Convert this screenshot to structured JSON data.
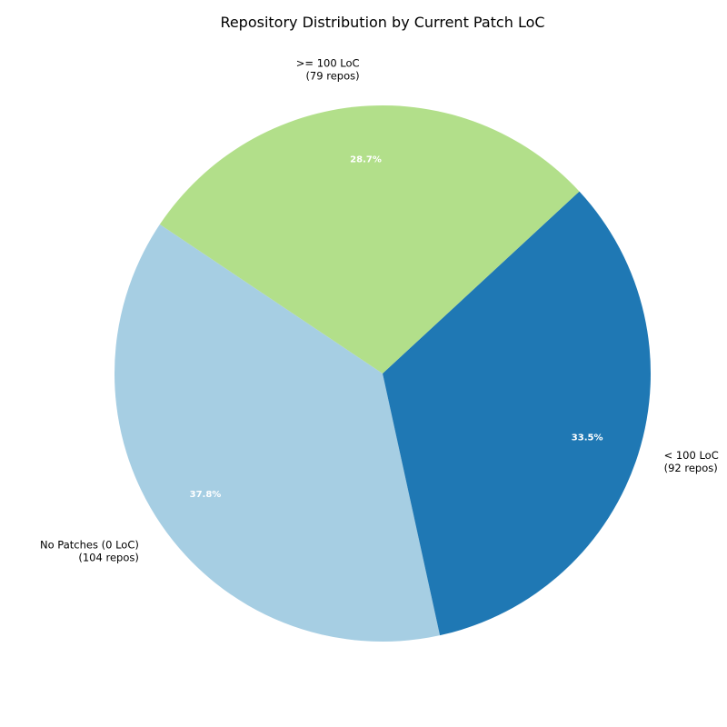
{
  "chart_data": {
    "type": "pie",
    "title": "Repository Distribution by Current Patch LoC",
    "slices": [
      {
        "label": "No Patches (0 LoC)",
        "detail": "(104 repos)",
        "value": 104,
        "percent_label": "37.8%",
        "color": "#a6cee3"
      },
      {
        "label": "< 100 LoC",
        "detail": "(92 repos)",
        "value": 92,
        "percent_label": "33.5%",
        "color": "#1f78b4"
      },
      {
        "label": ">= 100 LoC",
        "detail": "(79 repos)",
        "value": 79,
        "percent_label": "28.7%",
        "color": "#b2df8a"
      }
    ],
    "legend": "none"
  }
}
